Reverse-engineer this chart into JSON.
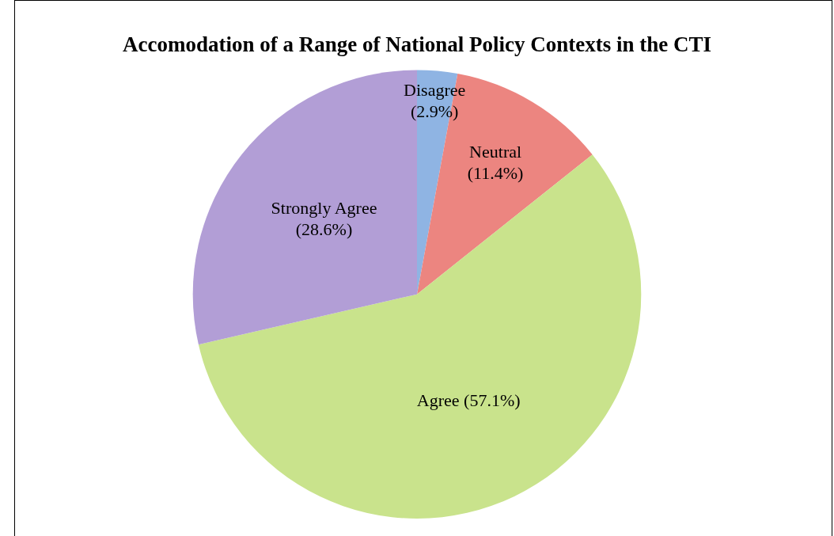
{
  "chart_data": {
    "type": "pie",
    "title": "Accomodation of a Range of National Policy Contexts in the CTI",
    "categories": [
      "Disagree",
      "Neutral",
      "Agree",
      "Strongly Agree"
    ],
    "values": [
      2.9,
      11.4,
      57.1,
      28.6
    ],
    "colors": [
      "#8fb4e3",
      "#ec8580",
      "#c9e38c",
      "#b29ed6"
    ],
    "value_labels": [
      "(2.9%)",
      "(11.4%)",
      "(57.1%)",
      "(28.6%)"
    ],
    "legend": false
  }
}
